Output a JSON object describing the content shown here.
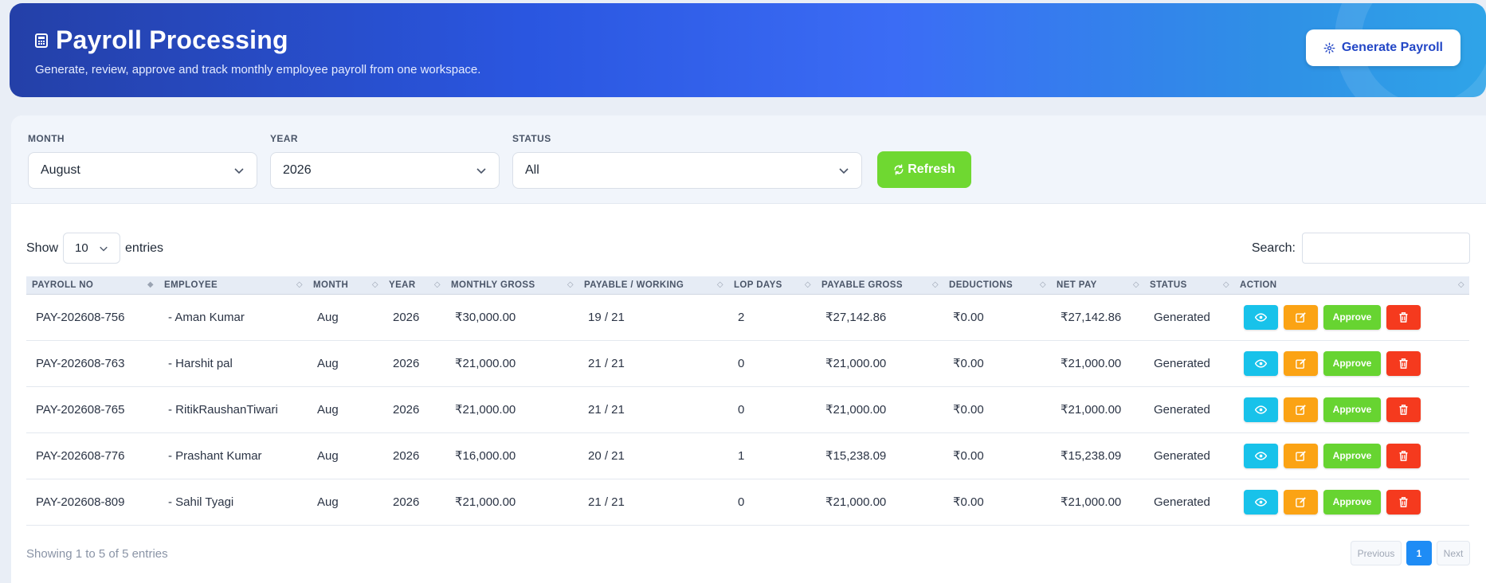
{
  "header": {
    "title": "Payroll Processing",
    "subtitle": "Generate, review, approve and track monthly employee payroll from one workspace.",
    "generate_button": "Generate Payroll"
  },
  "filters": {
    "month_label": "MONTH",
    "month_value": "August",
    "year_label": "YEAR",
    "year_value": "2026",
    "status_label": "STATUS",
    "status_value": "All",
    "refresh_button": "Refresh"
  },
  "table_controls": {
    "show_label": "Show",
    "page_length": "10",
    "entries_label": "entries",
    "search_label": "Search:"
  },
  "columns": [
    "PAYROLL NO",
    "EMPLOYEE",
    "MONTH",
    "YEAR",
    "MONTHLY GROSS",
    "PAYABLE / WORKING",
    "LOP DAYS",
    "PAYABLE GROSS",
    "DEDUCTIONS",
    "NET PAY",
    "STATUS",
    "ACTION"
  ],
  "rows": [
    {
      "payroll_no": "PAY-202608-756",
      "employee": "- Aman Kumar",
      "month": "Aug",
      "year": "2026",
      "monthly_gross": "₹30,000.00",
      "payable_working": "19 / 21",
      "lop_days": "2",
      "payable_gross": "₹27,142.86",
      "deductions": "₹0.00",
      "net_pay": "₹27,142.86",
      "status": "Generated",
      "approve_label": "Approve"
    },
    {
      "payroll_no": "PAY-202608-763",
      "employee": "- Harshit pal",
      "month": "Aug",
      "year": "2026",
      "monthly_gross": "₹21,000.00",
      "payable_working": "21 / 21",
      "lop_days": "0",
      "payable_gross": "₹21,000.00",
      "deductions": "₹0.00",
      "net_pay": "₹21,000.00",
      "status": "Generated",
      "approve_label": "Approve"
    },
    {
      "payroll_no": "PAY-202608-765",
      "employee": "- RitikRaushanTiwari",
      "month": "Aug",
      "year": "2026",
      "monthly_gross": "₹21,000.00",
      "payable_working": "21 / 21",
      "lop_days": "0",
      "payable_gross": "₹21,000.00",
      "deductions": "₹0.00",
      "net_pay": "₹21,000.00",
      "status": "Generated",
      "approve_label": "Approve"
    },
    {
      "payroll_no": "PAY-202608-776",
      "employee": "- Prashant Kumar",
      "month": "Aug",
      "year": "2026",
      "monthly_gross": "₹16,000.00",
      "payable_working": "20 / 21",
      "lop_days": "1",
      "payable_gross": "₹15,238.09",
      "deductions": "₹0.00",
      "net_pay": "₹15,238.09",
      "status": "Generated",
      "approve_label": "Approve"
    },
    {
      "payroll_no": "PAY-202608-809",
      "employee": "- Sahil Tyagi",
      "month": "Aug",
      "year": "2026",
      "monthly_gross": "₹21,000.00",
      "payable_working": "21 / 21",
      "lop_days": "0",
      "payable_gross": "₹21,000.00",
      "deductions": "₹0.00",
      "net_pay": "₹21,000.00",
      "status": "Generated",
      "approve_label": "Approve"
    }
  ],
  "footer": {
    "info": "Showing 1 to 5 of 5 entries",
    "previous": "Previous",
    "current_page": "1",
    "next": "Next"
  },
  "colors": {
    "view": "#18c2ea",
    "edit": "#fba314",
    "approve": "#67d431",
    "delete": "#f53a1e",
    "refresh": "#6fd831",
    "page_active": "#1e8cf5"
  },
  "icons": {
    "header": "calculator-icon",
    "generate": "gear-icon",
    "refresh": "refresh-icon",
    "view": "eye-icon",
    "edit": "edit-icon",
    "delete": "trash-icon"
  }
}
